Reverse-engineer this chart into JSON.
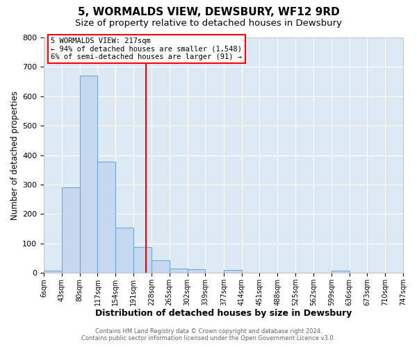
{
  "title": "5, WORMALDS VIEW, DEWSBURY, WF12 9RD",
  "subtitle": "Size of property relative to detached houses in Dewsbury",
  "xlabel": "Distribution of detached houses by size in Dewsbury",
  "ylabel": "Number of detached properties",
  "bin_edges": [
    6,
    43,
    80,
    117,
    154,
    191,
    228,
    265,
    302,
    339,
    377,
    414,
    451,
    488,
    525,
    562,
    599,
    636,
    673,
    710,
    747
  ],
  "bin_counts": [
    8,
    290,
    670,
    378,
    153,
    88,
    42,
    15,
    12,
    0,
    10,
    0,
    0,
    0,
    0,
    0,
    8,
    0,
    0,
    0
  ],
  "bar_color": "#c5d8f0",
  "bar_edge_color": "#6aaad4",
  "vline_x": 217,
  "vline_color": "red",
  "ylim": [
    0,
    800
  ],
  "yticks": [
    0,
    100,
    200,
    300,
    400,
    500,
    600,
    700,
    800
  ],
  "xtick_labels": [
    "6sqm",
    "43sqm",
    "80sqm",
    "117sqm",
    "154sqm",
    "191sqm",
    "228sqm",
    "265sqm",
    "302sqm",
    "339sqm",
    "377sqm",
    "414sqm",
    "451sqm",
    "488sqm",
    "525sqm",
    "562sqm",
    "599sqm",
    "636sqm",
    "673sqm",
    "710sqm",
    "747sqm"
  ],
  "annotation_title": "5 WORMALDS VIEW: 217sqm",
  "annotation_line1": "← 94% of detached houses are smaller (1,548)",
  "annotation_line2": "6% of semi-detached houses are larger (91) →",
  "footer_line1": "Contains HM Land Registry data © Crown copyright and database right 2024.",
  "footer_line2": "Contains public sector information licensed under the Open Government Licence v3.0.",
  "plot_bg_color": "#dce9f5",
  "fig_bg_color": "#ffffff",
  "grid_color": "#ffffff",
  "title_fontsize": 11,
  "subtitle_fontsize": 9.5,
  "annotation_box_edge_color": "red"
}
